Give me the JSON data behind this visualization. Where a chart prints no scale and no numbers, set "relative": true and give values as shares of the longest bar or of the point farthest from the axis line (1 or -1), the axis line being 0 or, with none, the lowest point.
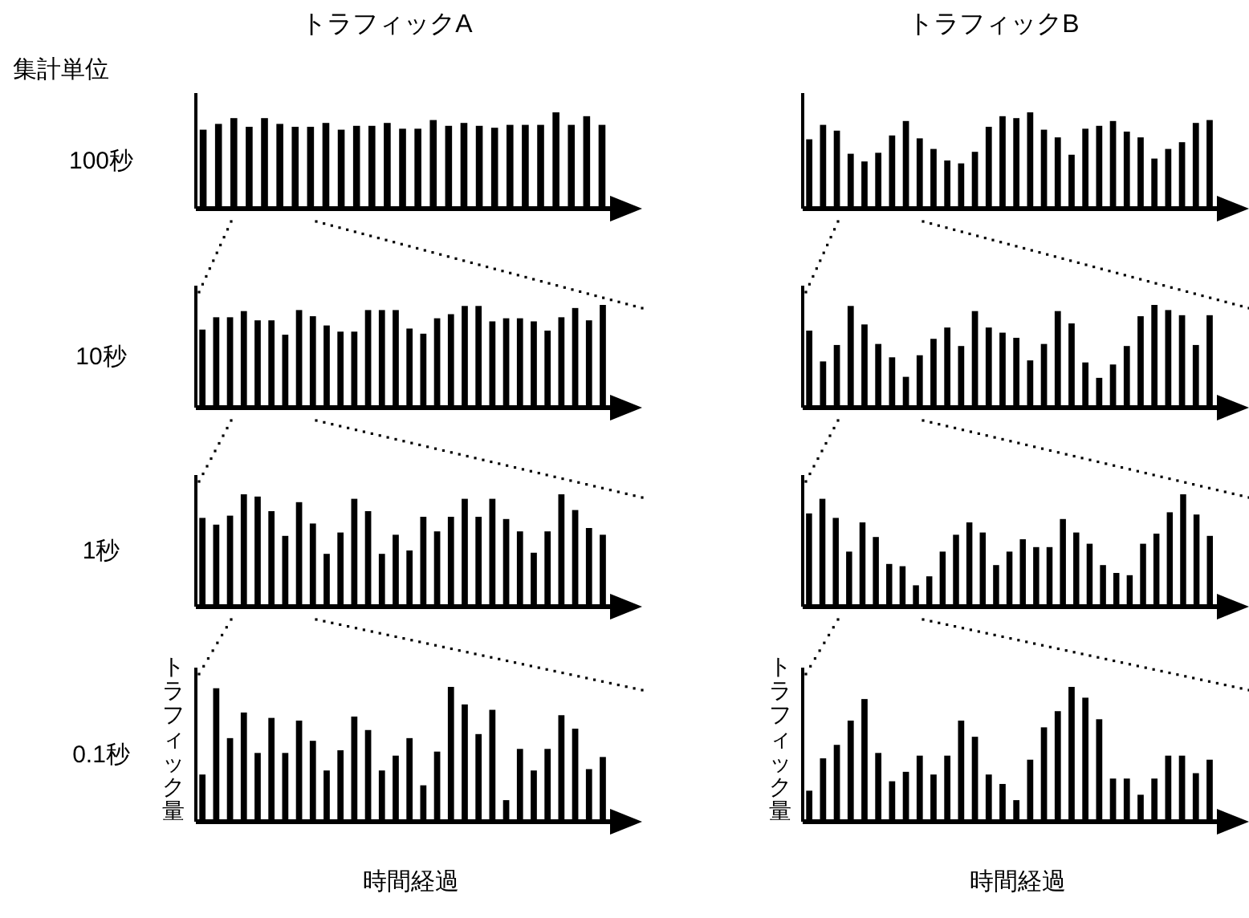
{
  "chart_data": [
    {
      "type": "bar",
      "title": "トラフィックA",
      "annotations": [
        "集計単位",
        "100秒"
      ],
      "relative": true,
      "color": "#000000",
      "categories": [
        null,
        null,
        null,
        null,
        null,
        null,
        null,
        null,
        null,
        null,
        null,
        null,
        null,
        null,
        null,
        null,
        null,
        null,
        null,
        null,
        null,
        null,
        null,
        null,
        null,
        null,
        null
      ],
      "values": [
        0.82,
        0.88,
        0.94,
        0.85,
        0.94,
        0.88,
        0.85,
        0.85,
        0.89,
        0.82,
        0.86,
        0.86,
        0.89,
        0.83,
        0.83,
        0.92,
        0.86,
        0.89,
        0.86,
        0.84,
        0.87,
        0.87,
        0.87,
        1,
        0.87,
        0.96,
        0.87
      ]
    },
    {
      "type": "bar",
      "title": "トラフィックB",
      "relative": true,
      "color": "#000000",
      "categories": [
        null,
        null,
        null,
        null,
        null,
        null,
        null,
        null,
        null,
        null,
        null,
        null,
        null,
        null,
        null,
        null,
        null,
        null,
        null,
        null,
        null,
        null,
        null,
        null,
        null,
        null,
        null,
        null,
        null,
        null
      ],
      "values": [
        0.72,
        0.87,
        0.81,
        0.57,
        0.49,
        0.58,
        0.76,
        0.91,
        0.73,
        0.62,
        0.5,
        0.47,
        0.59,
        0.85,
        0.96,
        0.94,
        1,
        0.82,
        0.74,
        0.56,
        0.83,
        0.86,
        0.91,
        0.8,
        0.74,
        0.52,
        0.62,
        0.69,
        0.89,
        0.92
      ]
    },
    {
      "type": "bar",
      "annotations": [
        "10秒"
      ],
      "relative": true,
      "color": "#000000",
      "categories": [
        null,
        null,
        null,
        null,
        null,
        null,
        null,
        null,
        null,
        null,
        null,
        null,
        null,
        null,
        null,
        null,
        null,
        null,
        null,
        null,
        null,
        null,
        null,
        null,
        null,
        null,
        null,
        null,
        null,
        null
      ],
      "values": [
        0.76,
        0.88,
        0.88,
        0.94,
        0.85,
        0.85,
        0.71,
        0.95,
        0.89,
        0.8,
        0.74,
        0.74,
        0.95,
        0.95,
        0.95,
        0.77,
        0.72,
        0.87,
        0.91,
        0.99,
        0.99,
        0.84,
        0.87,
        0.87,
        0.84,
        0.75,
        0.88,
        0.97,
        0.85,
        1
      ]
    },
    {
      "type": "bar",
      "relative": true,
      "color": "#000000",
      "categories": [
        null,
        null,
        null,
        null,
        null,
        null,
        null,
        null,
        null,
        null,
        null,
        null,
        null,
        null,
        null,
        null,
        null,
        null,
        null,
        null,
        null,
        null,
        null,
        null,
        null,
        null,
        null,
        null,
        null,
        null
      ],
      "values": [
        0.75,
        0.45,
        0.61,
        0.99,
        0.81,
        0.62,
        0.49,
        0.3,
        0.51,
        0.67,
        0.78,
        0.6,
        0.94,
        0.78,
        0.73,
        0.68,
        0.46,
        0.62,
        0.94,
        0.82,
        0.44,
        0.29,
        0.42,
        0.6,
        0.89,
        1,
        0.95,
        0.9,
        0.61,
        0.9
      ]
    },
    {
      "type": "bar",
      "annotations": [
        "1秒"
      ],
      "relative": true,
      "color": "#000000",
      "categories": [
        null,
        null,
        null,
        null,
        null,
        null,
        null,
        null,
        null,
        null,
        null,
        null,
        null,
        null,
        null,
        null,
        null,
        null,
        null,
        null,
        null,
        null,
        null,
        null,
        null,
        null,
        null,
        null,
        null,
        null
      ],
      "values": [
        0.79,
        0.73,
        0.81,
        1,
        0.98,
        0.85,
        0.63,
        0.93,
        0.74,
        0.47,
        0.66,
        0.96,
        0.85,
        0.47,
        0.64,
        0.5,
        0.8,
        0.67,
        0.8,
        0.96,
        0.8,
        0.96,
        0.78,
        0.67,
        0.48,
        0.67,
        1,
        0.86,
        0.7,
        0.64
      ]
    },
    {
      "type": "bar",
      "relative": true,
      "color": "#000000",
      "categories": [
        null,
        null,
        null,
        null,
        null,
        null,
        null,
        null,
        null,
        null,
        null,
        null,
        null,
        null,
        null,
        null,
        null,
        null,
        null,
        null,
        null,
        null,
        null,
        null,
        null,
        null,
        null,
        null,
        null,
        null,
        null
      ],
      "values": [
        0.83,
        0.96,
        0.79,
        0.49,
        0.75,
        0.62,
        0.38,
        0.36,
        0.19,
        0.27,
        0.49,
        0.64,
        0.75,
        0.66,
        0.37,
        0.49,
        0.6,
        0.53,
        0.53,
        0.78,
        0.66,
        0.56,
        0.37,
        0.3,
        0.28,
        0.56,
        0.65,
        0.84,
        1,
        0.82,
        0.63
      ]
    },
    {
      "type": "bar",
      "annotations": [
        "0.1秒"
      ],
      "xlabel": "時間経過",
      "ylabel": "トラフィック量",
      "relative": true,
      "color": "#000000",
      "categories": [
        null,
        null,
        null,
        null,
        null,
        null,
        null,
        null,
        null,
        null,
        null,
        null,
        null,
        null,
        null,
        null,
        null,
        null,
        null,
        null,
        null,
        null,
        null,
        null,
        null,
        null,
        null,
        null,
        null,
        null
      ],
      "values": [
        0.35,
        0.99,
        0.62,
        0.81,
        0.51,
        0.77,
        0.51,
        0.75,
        0.6,
        0.38,
        0.53,
        0.78,
        0.68,
        0.38,
        0.49,
        0.62,
        0.27,
        0.52,
        1,
        0.87,
        0.65,
        0.83,
        0.16,
        0.54,
        0.38,
        0.54,
        0.79,
        0.69,
        0.39,
        0.48
      ]
    },
    {
      "type": "bar",
      "xlabel": "時間経過",
      "ylabel": "トラフィック量",
      "relative": true,
      "color": "#000000",
      "categories": [
        null,
        null,
        null,
        null,
        null,
        null,
        null,
        null,
        null,
        null,
        null,
        null,
        null,
        null,
        null,
        null,
        null,
        null,
        null,
        null,
        null,
        null,
        null,
        null,
        null,
        null,
        null,
        null,
        null,
        null
      ],
      "values": [
        0.23,
        0.47,
        0.57,
        0.75,
        0.91,
        0.51,
        0.3,
        0.37,
        0.49,
        0.35,
        0.49,
        0.75,
        0.63,
        0.35,
        0.28,
        0.16,
        0.46,
        0.7,
        0.82,
        1,
        0.92,
        0.76,
        0.32,
        0.32,
        0.2,
        0.32,
        0.49,
        0.49,
        0.36,
        0.46
      ]
    }
  ]
}
